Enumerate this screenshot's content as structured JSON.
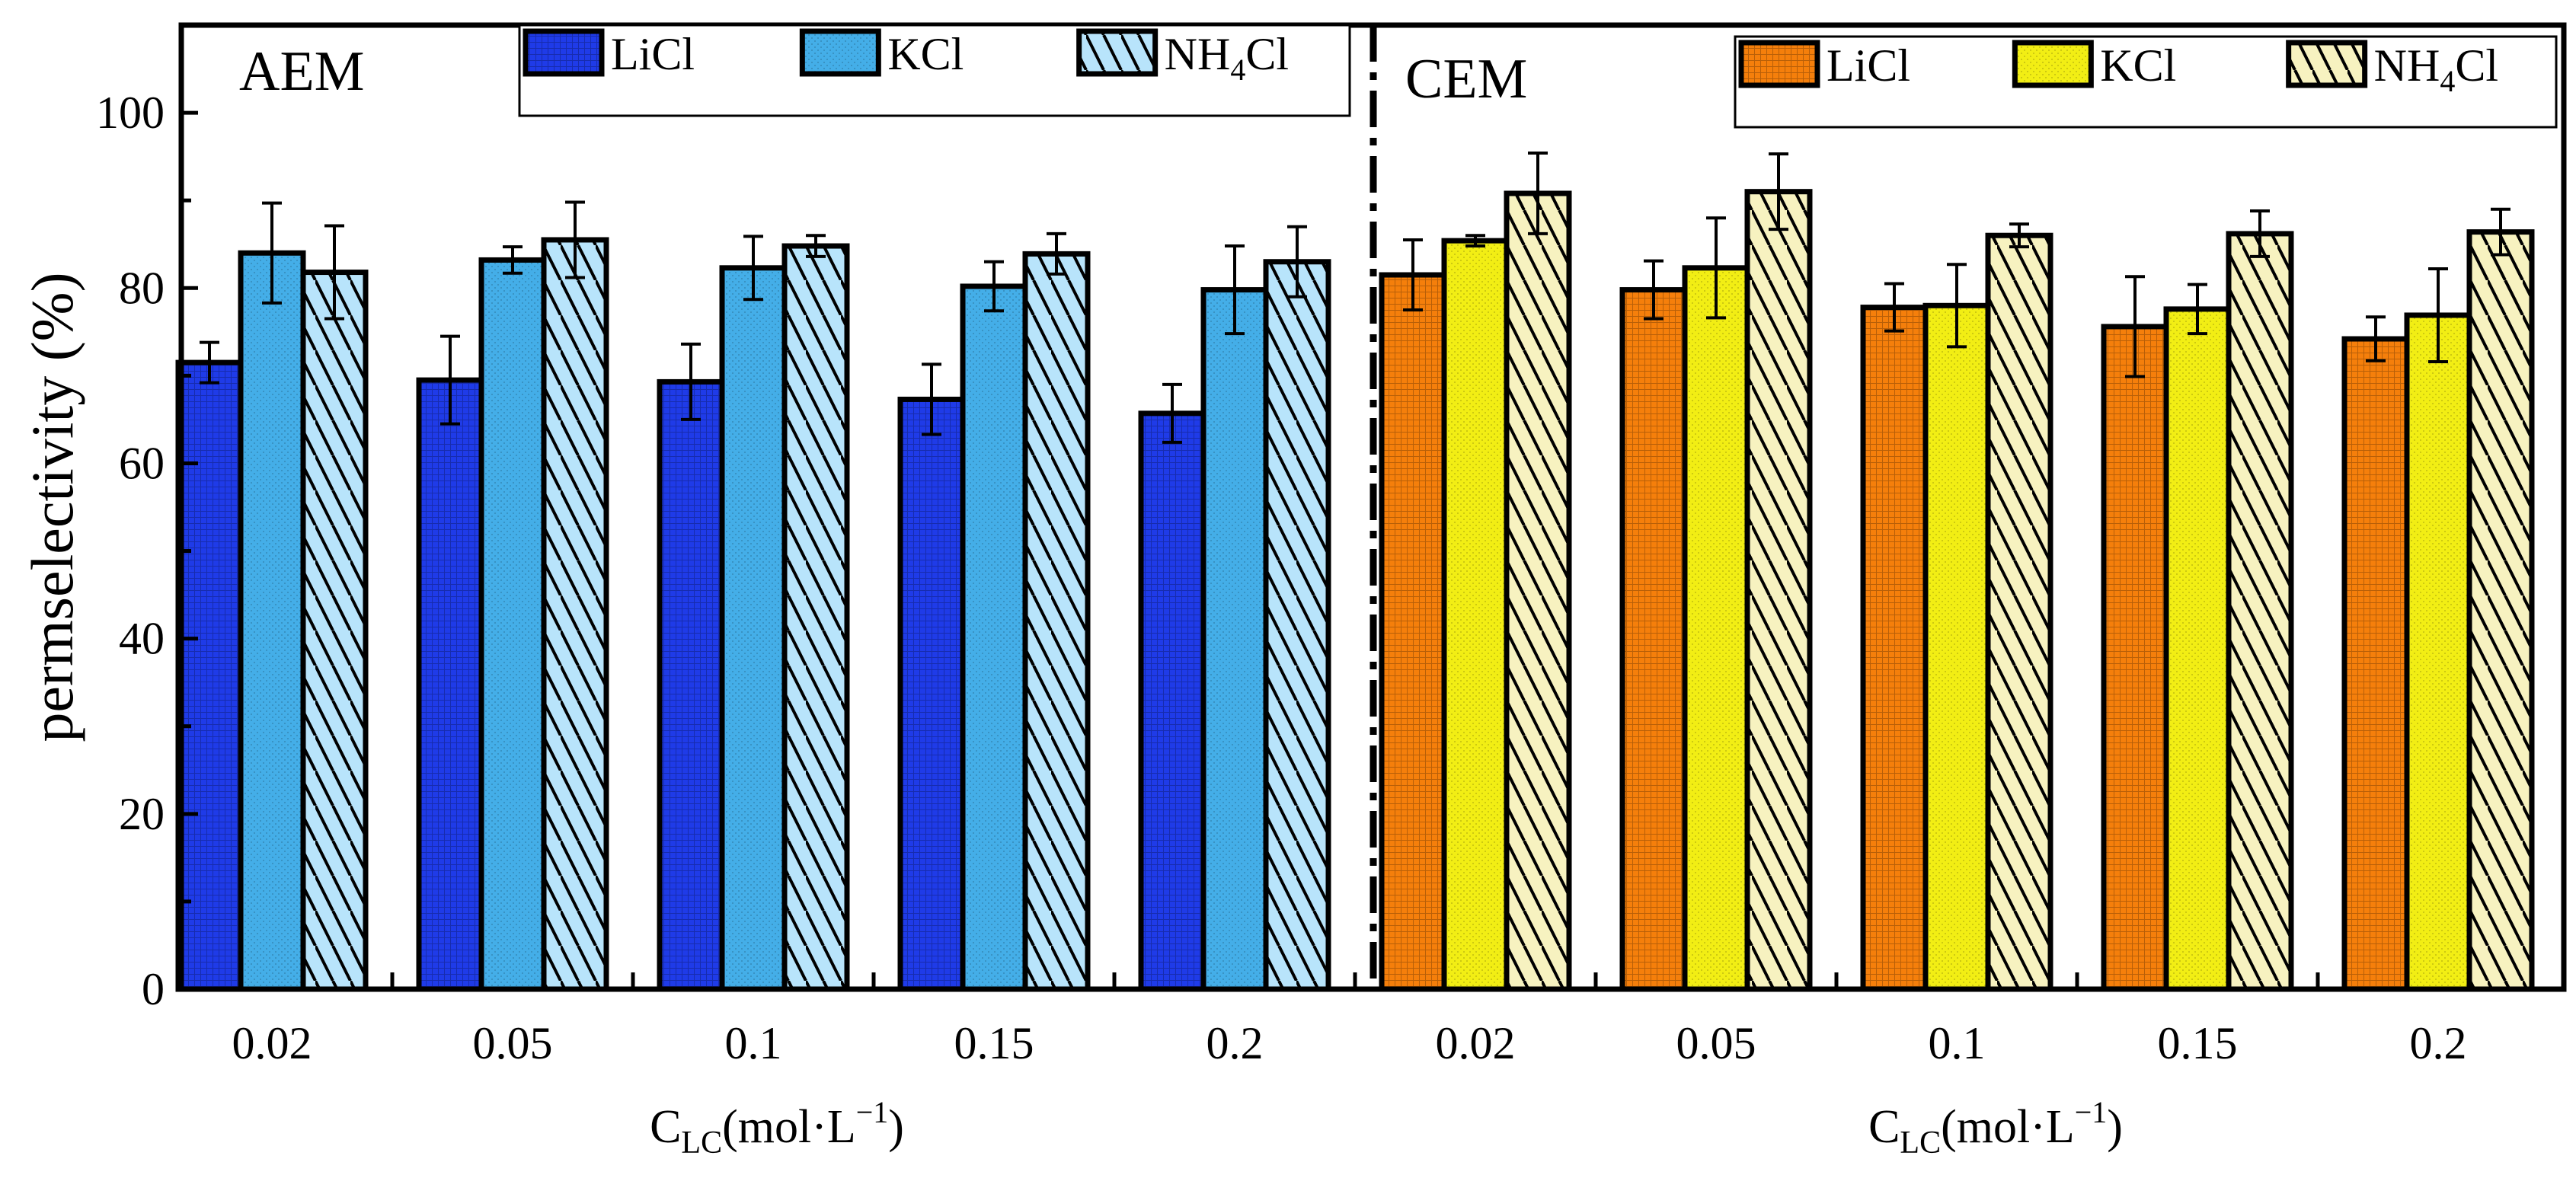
{
  "chart_data": {
    "type": "bar",
    "ylabel": "permselectivity (%)",
    "ylim": [
      0,
      110
    ],
    "yticks": [
      0,
      20,
      40,
      60,
      80,
      100
    ],
    "panels": [
      {
        "name": "AEM",
        "xlabel_main": "C",
        "xlabel_sub": "LC",
        "xlabel_rest": "(mol·L",
        "xlabel_sup": "−1",
        "xlabel_close": ")",
        "categories": [
          "0.02",
          "0.05",
          "0.1",
          "0.15",
          "0.2"
        ],
        "series": [
          {
            "name": "LiCl",
            "color": "#1f3be8",
            "pattern": "grid",
            "values": [
              71.5,
              69.5,
              69.3,
              67.3,
              65.7
            ],
            "errors": [
              2.3,
              5.0,
              4.3,
              4.0,
              3.3
            ]
          },
          {
            "name": "KCl",
            "color": "#44aee8",
            "pattern": "dots",
            "values": [
              84.0,
              83.2,
              82.3,
              80.2,
              79.8
            ],
            "errors": [
              5.7,
              1.5,
              3.6,
              2.8,
              5.0
            ]
          },
          {
            "name": "NH4Cl",
            "name_parts": [
              "NH",
              "4",
              "Cl"
            ],
            "color": "#b8e4fb",
            "pattern": "hatch",
            "values": [
              81.8,
              85.5,
              84.8,
              83.9,
              83.0
            ],
            "errors": [
              5.3,
              4.3,
              1.2,
              2.3,
              4.0
            ]
          }
        ]
      },
      {
        "name": "CEM",
        "xlabel_main": "C",
        "xlabel_sub": "LC",
        "xlabel_rest": "(mol·L",
        "xlabel_sup": "−1",
        "xlabel_close": ")",
        "categories": [
          "0.02",
          "0.05",
          "0.1",
          "0.15",
          "0.2"
        ],
        "series": [
          {
            "name": "LiCl",
            "color": "#f57f0b",
            "pattern": "grid",
            "values": [
              81.5,
              79.8,
              77.8,
              75.6,
              74.2
            ],
            "errors": [
              4.0,
              3.3,
              2.7,
              5.7,
              2.5
            ]
          },
          {
            "name": "KCl",
            "color": "#f2ee14",
            "pattern": "dots",
            "values": [
              85.4,
              82.3,
              78.0,
              77.6,
              76.9
            ],
            "errors": [
              0.6,
              5.7,
              4.7,
              2.8,
              5.3
            ]
          },
          {
            "name": "NH4Cl",
            "name_parts": [
              "NH",
              "4",
              "Cl"
            ],
            "color": "#f7f2c0",
            "pattern": "hatch",
            "values": [
              90.8,
              91.0,
              86.0,
              86.2,
              86.4
            ],
            "errors": [
              4.6,
              4.3,
              1.3,
              2.6,
              2.6
            ]
          }
        ]
      }
    ]
  }
}
